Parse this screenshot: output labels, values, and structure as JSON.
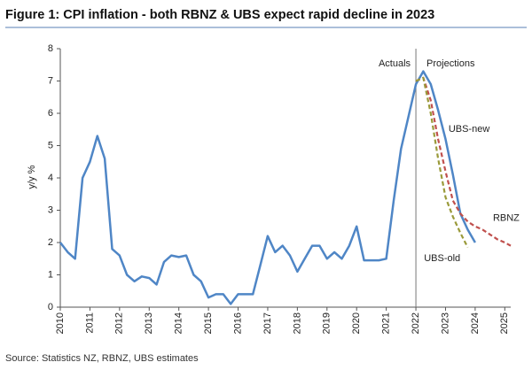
{
  "chart_data": {
    "type": "line",
    "title": "Figure 1: CPI inflation - both RBNZ & UBS expect rapid decline in 2023",
    "y_label": "y/y %",
    "source": "Source: Statistics NZ, RBNZ, UBS estimates",
    "annotations": [
      "Actuals",
      "Projections"
    ],
    "xlim": [
      2010,
      2025.2
    ],
    "xticks": [
      2010,
      2011,
      2012,
      2013,
      2014,
      2015,
      2016,
      2017,
      2018,
      2019,
      2020,
      2021,
      2022,
      2023,
      2024,
      2025
    ],
    "ylim": [
      0,
      8
    ],
    "yticks": [
      0,
      1,
      2,
      3,
      4,
      5,
      6,
      7,
      8
    ],
    "series": [
      {
        "name": "UBS-new",
        "color": "#4f86c6",
        "dashed": false,
        "x": [
          2010,
          2010.25,
          2010.5,
          2010.75,
          2011,
          2011.25,
          2011.5,
          2011.75,
          2012,
          2012.25,
          2012.5,
          2012.75,
          2013,
          2013.25,
          2013.5,
          2013.75,
          2014,
          2014.25,
          2014.5,
          2014.75,
          2015,
          2015.25,
          2015.5,
          2015.75,
          2016,
          2016.25,
          2016.5,
          2016.75,
          2017,
          2017.25,
          2017.5,
          2017.75,
          2018,
          2018.25,
          2018.5,
          2018.75,
          2019,
          2019.25,
          2019.5,
          2019.75,
          2020,
          2020.25,
          2020.5,
          2020.75,
          2021,
          2021.25,
          2021.5,
          2021.75,
          2022,
          2022.25,
          2022.5,
          2022.75,
          2023,
          2023.25,
          2023.5,
          2023.75,
          2024
        ],
        "values": [
          2.0,
          1.7,
          1.5,
          4.0,
          4.5,
          5.3,
          4.6,
          1.8,
          1.6,
          1.0,
          0.8,
          0.95,
          0.9,
          0.7,
          1.4,
          1.6,
          1.55,
          1.6,
          1.0,
          0.8,
          0.3,
          0.4,
          0.4,
          0.1,
          0.4,
          0.4,
          0.4,
          1.3,
          2.2,
          1.7,
          1.9,
          1.6,
          1.1,
          1.5,
          1.9,
          1.9,
          1.5,
          1.7,
          1.5,
          1.9,
          2.5,
          1.45,
          1.45,
          1.45,
          1.5,
          3.3,
          4.9,
          5.9,
          6.9,
          7.3,
          6.9,
          6.1,
          5.2,
          4.1,
          2.9,
          2.4,
          2.0
        ]
      },
      {
        "name": "RBNZ",
        "color": "#c0504d",
        "dashed": true,
        "x": [
          2022,
          2022.25,
          2022.5,
          2022.75,
          2023,
          2023.25,
          2023.5,
          2023.75,
          2024,
          2024.25,
          2024.5,
          2024.75,
          2025,
          2025.2
        ],
        "values": [
          7.0,
          7.1,
          6.4,
          5.2,
          4.2,
          3.3,
          2.9,
          2.65,
          2.5,
          2.4,
          2.25,
          2.1,
          2.0,
          1.9
        ]
      },
      {
        "name": "UBS-old",
        "color": "#9a9a3a",
        "dashed": true,
        "x": [
          2022,
          2022.25,
          2022.5,
          2022.75,
          2023,
          2023.25,
          2023.5,
          2023.75
        ],
        "values": [
          7.0,
          7.1,
          6.0,
          4.6,
          3.4,
          2.8,
          2.3,
          1.85
        ]
      }
    ]
  }
}
